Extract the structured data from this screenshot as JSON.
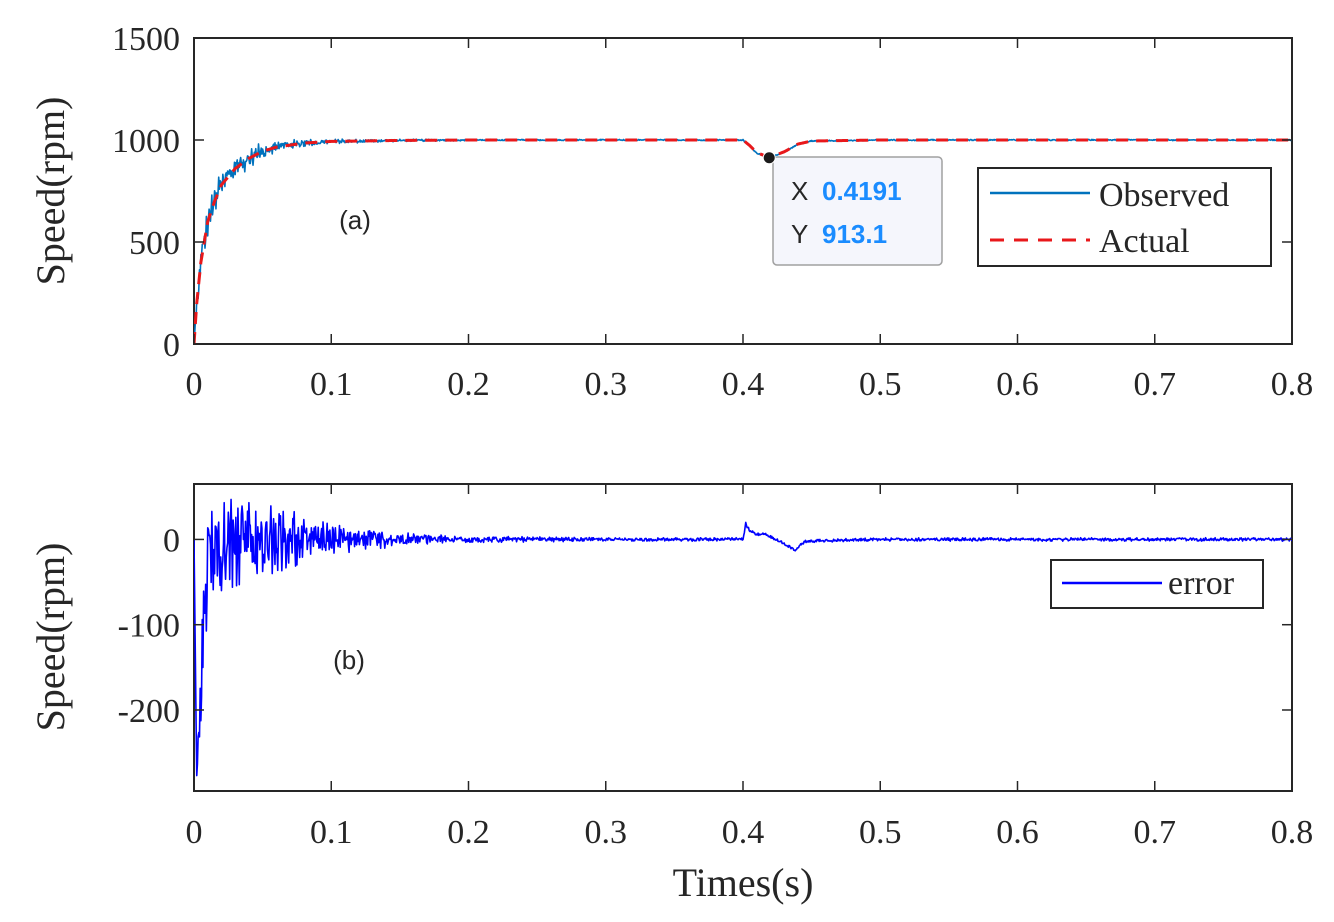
{
  "chart_data": [
    {
      "type": "line",
      "panel_tag": "(a)",
      "ylabel": "Speed(rpm)",
      "xlabel": "",
      "xlim": [
        0,
        0.8
      ],
      "ylim": [
        0,
        1500
      ],
      "xticks": [
        "0",
        "0.1",
        "0.2",
        "0.3",
        "0.4",
        "0.5",
        "0.6",
        "0.7",
        "0.8"
      ],
      "yticks": [
        "0",
        "500",
        "1000",
        "1500"
      ],
      "grid": false,
      "legend_position": "right",
      "series": [
        {
          "name": "Observed",
          "color": "#0072bd",
          "style": "solid",
          "x": [
            0,
            0.002,
            0.005,
            0.01,
            0.015,
            0.02,
            0.03,
            0.04,
            0.05,
            0.06,
            0.08,
            0.1,
            0.15,
            0.2,
            0.3,
            0.4,
            0.405,
            0.41,
            0.4191,
            0.43,
            0.44,
            0.45,
            0.5,
            0.6,
            0.7,
            0.8
          ],
          "y": [
            0,
            200,
            400,
            600,
            700,
            780,
            860,
            910,
            950,
            970,
            985,
            993,
            998,
            1000,
            1000,
            1000,
            970,
            935,
            913.1,
            940,
            980,
            995,
            1000,
            1000,
            1000,
            1000
          ],
          "noise": [
            0,
            60,
            80,
            90,
            80,
            70,
            60,
            50,
            40,
            30,
            20,
            12,
            6,
            4,
            3,
            3,
            3,
            3,
            3,
            3,
            3,
            3,
            3,
            3,
            3,
            3
          ]
        },
        {
          "name": "Actual",
          "color": "#e8181b",
          "style": "dashed",
          "x": [
            0,
            0.002,
            0.005,
            0.01,
            0.015,
            0.02,
            0.03,
            0.04,
            0.05,
            0.06,
            0.08,
            0.1,
            0.15,
            0.2,
            0.3,
            0.4,
            0.405,
            0.41,
            0.4191,
            0.43,
            0.44,
            0.45,
            0.5,
            0.6,
            0.7,
            0.8
          ],
          "y": [
            0,
            200,
            400,
            600,
            700,
            780,
            860,
            910,
            945,
            965,
            985,
            993,
            998,
            1000,
            1000,
            1000,
            972,
            938,
            915,
            942,
            980,
            995,
            1000,
            1000,
            1000,
            1000
          ]
        }
      ],
      "datatip": {
        "x_key": "X",
        "x_value": "0.4191",
        "y_key": "Y",
        "y_value": "913.1",
        "x": 0.4191,
        "y": 913.1
      }
    },
    {
      "type": "line",
      "panel_tag": "(b)",
      "ylabel": "Speed(rpm)",
      "xlabel": "Times(s)",
      "xlim": [
        0,
        0.8
      ],
      "ylim": [
        -295,
        65
      ],
      "xticks": [
        "0",
        "0.1",
        "0.2",
        "0.3",
        "0.4",
        "0.5",
        "0.6",
        "0.7",
        "0.8"
      ],
      "yticks": [
        "-200",
        "-100",
        "0"
      ],
      "ytick_values": [
        -200,
        -100,
        0
      ],
      "grid": false,
      "legend_position": "right",
      "series": [
        {
          "name": "error",
          "color": "#0000ff",
          "style": "solid",
          "x": [
            0,
            0.002,
            0.004,
            0.006,
            0.008,
            0.01,
            0.02,
            0.03,
            0.04,
            0.05,
            0.06,
            0.08,
            0.1,
            0.15,
            0.2,
            0.3,
            0.4,
            0.402,
            0.405,
            0.41,
            0.415,
            0.42,
            0.43,
            0.438,
            0.445,
            0.5,
            0.6,
            0.7,
            0.8
          ],
          "y": [
            0,
            -280,
            -200,
            -150,
            -80,
            -20,
            -10,
            0,
            0,
            0,
            0,
            0,
            0,
            0,
            0,
            0,
            0,
            18,
            10,
            5,
            8,
            3,
            -5,
            -12,
            -2,
            0,
            0,
            0,
            0
          ],
          "noise": [
            0,
            10,
            40,
            60,
            60,
            60,
            55,
            55,
            50,
            50,
            40,
            30,
            20,
            8,
            4,
            2,
            2,
            2,
            2,
            2,
            2,
            2,
            2,
            2,
            2,
            2,
            2,
            2,
            2
          ]
        }
      ]
    }
  ]
}
